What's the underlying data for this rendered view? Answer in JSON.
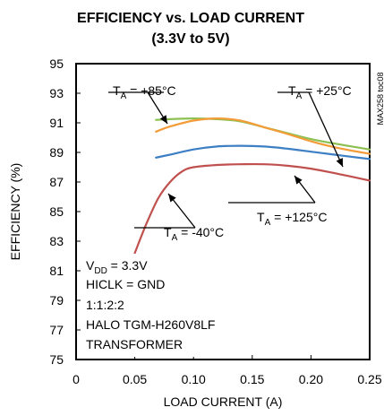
{
  "chart_data": {
    "type": "line",
    "title_line1": "EFFICIENCY vs. LOAD CURRENT",
    "title_line2": "(3.3V to 5V)",
    "xlabel": "LOAD CURRENT (A)",
    "ylabel": "EFFICIENCY (%)",
    "xlim": [
      0,
      0.25
    ],
    "ylim": [
      75,
      95
    ],
    "x_ticks": [
      "0",
      "0.05",
      "0.10",
      "0.15",
      "0.20",
      "0.25"
    ],
    "y_ticks": [
      "75",
      "77",
      "79",
      "81",
      "83",
      "85",
      "87",
      "89",
      "91",
      "93",
      "95"
    ],
    "grid": false,
    "series": [
      {
        "name": "TA = +25°C",
        "color": "#8cc152",
        "x": [
          0.068,
          0.08,
          0.1,
          0.12,
          0.14,
          0.16,
          0.18,
          0.2,
          0.22,
          0.25
        ],
        "y": [
          91.2,
          91.25,
          91.3,
          91.25,
          91.1,
          90.7,
          90.3,
          89.9,
          89.6,
          89.2
        ]
      },
      {
        "name": "TA = +85°C",
        "color": "#f39c37",
        "x": [
          0.068,
          0.08,
          0.1,
          0.12,
          0.14,
          0.16,
          0.18,
          0.2,
          0.22,
          0.25
        ],
        "y": [
          90.4,
          90.75,
          91.15,
          91.3,
          91.15,
          90.7,
          90.25,
          89.75,
          89.35,
          88.9
        ]
      },
      {
        "name": "TA = -40°C",
        "color": "#3d7fc4",
        "x": [
          0.068,
          0.08,
          0.1,
          0.12,
          0.14,
          0.16,
          0.18,
          0.2,
          0.22,
          0.25
        ],
        "y": [
          88.65,
          88.85,
          89.2,
          89.4,
          89.45,
          89.4,
          89.25,
          89.05,
          88.85,
          88.55
        ]
      },
      {
        "name": "TA = +125°C",
        "color": "#c0504d",
        "x": [
          0.05,
          0.06,
          0.07,
          0.08,
          0.09,
          0.1,
          0.12,
          0.14,
          0.16,
          0.18,
          0.2,
          0.22,
          0.25
        ],
        "y": [
          82.2,
          84.2,
          85.9,
          87.0,
          87.7,
          88.0,
          88.15,
          88.2,
          88.2,
          88.1,
          87.9,
          87.6,
          87.1
        ]
      }
    ],
    "annotations": {
      "t25": {
        "main": "T",
        "sub": "A",
        "rest": " = +25°C"
      },
      "t85": {
        "main": "T",
        "sub": "A",
        "rest": " = +85°C"
      },
      "tm40": {
        "main": "T",
        "sub": "A",
        "rest": " = -40°C"
      },
      "t125": {
        "main": "T",
        "sub": "A",
        "rest": " = +125°C"
      }
    },
    "conditions": {
      "vdd_main": "V",
      "vdd_sub": "DD",
      "vdd_rest": " = 3.3V",
      "line2": "HICLK = GND",
      "line3": "1:1:2:2",
      "line4": "HALO TGM-H260V8LF",
      "line5": "TRANSFORMER"
    },
    "side_label": "MAX258 toc08"
  }
}
